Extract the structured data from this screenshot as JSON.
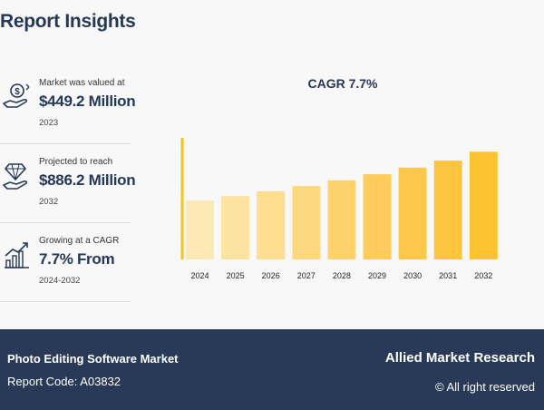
{
  "heading": "Report Insights",
  "stats": [
    {
      "icon": "money-hand-icon",
      "label": "Market was valued at",
      "value": "$449.2 Million",
      "year": "2023"
    },
    {
      "icon": "diamond-hand-icon",
      "label": "Projected to reach",
      "value": "$886.2 Million",
      "year": "2032"
    },
    {
      "icon": "growth-chart-icon",
      "label": "Growing at a CAGR",
      "value": "7.7% From",
      "year": "2024-2032"
    }
  ],
  "chart_data": {
    "type": "bar",
    "title": "CAGR 7.7%",
    "categories": [
      "2024",
      "2025",
      "2026",
      "2027",
      "2028",
      "2029",
      "2030",
      "2031",
      "2032"
    ],
    "values": [
      484,
      521,
      561,
      604,
      651,
      701,
      755,
      813,
      886
    ],
    "ylim": [
      0,
      1000
    ],
    "show_y_axis_labels": false,
    "colors": [
      "#fde9b4",
      "#fde3a2",
      "#fddd90",
      "#fdd87f",
      "#fdd26d",
      "#fdcc5c",
      "#fdc74b",
      "#fdc43e",
      "#fdc431"
    ],
    "axis_color": "#f5c518"
  },
  "footer": {
    "market": "Photo Editing Software Market",
    "report_code": "Report Code: A03832",
    "brand": "Allied Market Research",
    "rights": "© All right reserved"
  }
}
